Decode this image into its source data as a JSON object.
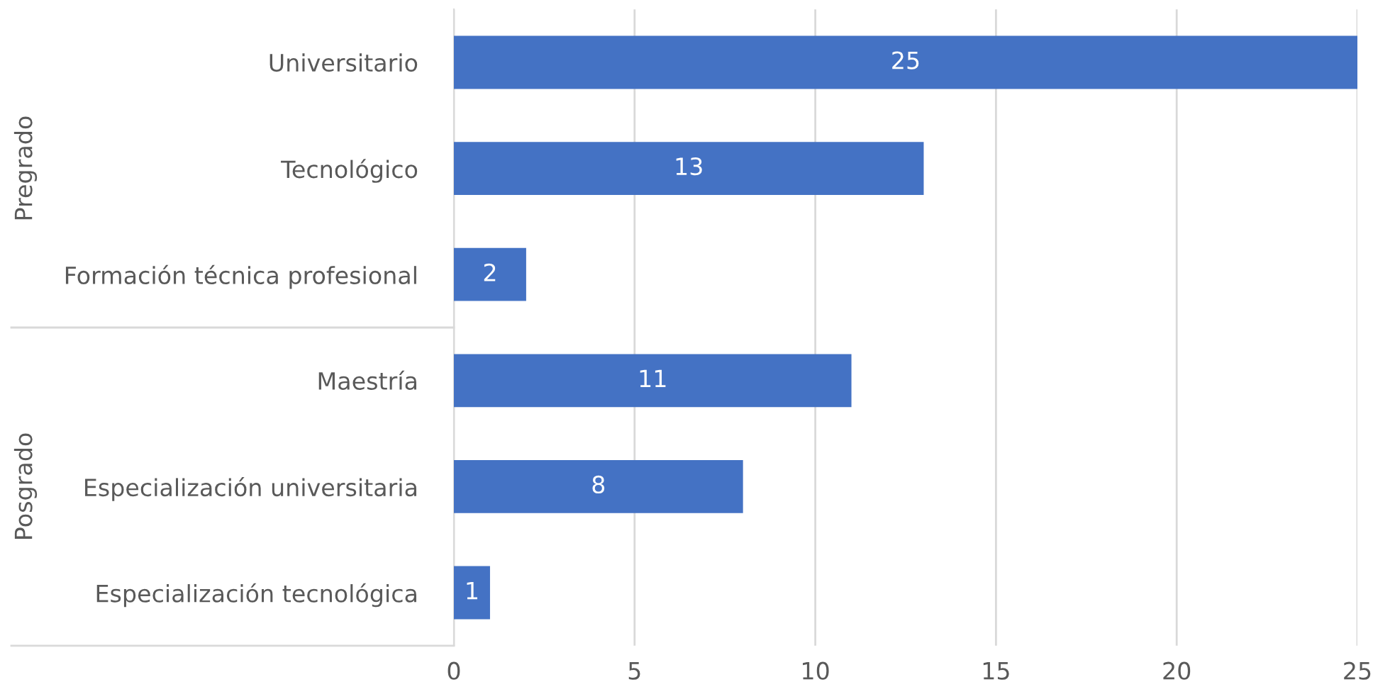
{
  "chart_data": {
    "type": "bar",
    "orientation": "horizontal",
    "categories": [
      "Universitario",
      "Tecnológico",
      "Formación técnica profesional",
      "Maestría",
      "Especialización universitaria",
      "Especialización tecnológica"
    ],
    "values": [
      25,
      13,
      2,
      11,
      8,
      1
    ],
    "color": "#4472c4",
    "xlim": [
      0,
      25
    ],
    "xticks": [
      0,
      5,
      10,
      15,
      20,
      25
    ],
    "grid": "x",
    "data_labels": true,
    "annotations": [
      "Pregrado",
      "Posgrado"
    ]
  }
}
